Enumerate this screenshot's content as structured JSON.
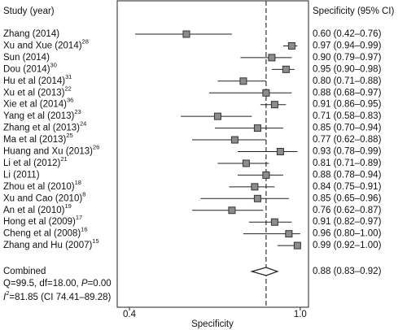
{
  "chart_data": {
    "type": "forest",
    "header_left": "Study (year)",
    "header_right": "Specificity (95% CI)",
    "xlabel": "Specificity",
    "categories": [
      "Zhang (2014)",
      "Xu and Xue (2014)",
      "Sun (2014)",
      "Dou (2014)",
      "Hu et al (2014)",
      "Xu et al (2013)",
      "Xie et al (2014)",
      "Yang et al (2013)",
      "Zhang et al (2013)",
      "Ma et al (2013)",
      "Huang and Xu (2013)",
      "Li et al (2012)",
      "Li (2011)",
      "Zhou et al (2010)",
      "Xu and Cao (2010)",
      "An et al (2010)",
      "Hong et al (2009)",
      "Cheng et al (2008)",
      "Zhang and Hu (2007)"
    ],
    "refs": [
      null,
      "28",
      null,
      "30",
      "31",
      "22",
      "36",
      "23",
      "24",
      "25",
      "26",
      "21",
      null,
      "18",
      "8",
      "19",
      "17",
      "16",
      "15"
    ],
    "values": [
      0.6,
      0.97,
      0.9,
      0.95,
      0.8,
      0.88,
      0.91,
      0.71,
      0.85,
      0.77,
      0.93,
      0.81,
      0.88,
      0.84,
      0.85,
      0.76,
      0.91,
      0.96,
      0.99
    ],
    "lower": [
      0.42,
      0.94,
      0.79,
      0.9,
      0.71,
      0.68,
      0.86,
      0.58,
      0.7,
      0.62,
      0.78,
      0.71,
      0.78,
      0.75,
      0.65,
      0.62,
      0.82,
      0.8,
      0.92
    ],
    "upper": [
      0.76,
      0.99,
      0.97,
      0.98,
      0.88,
      0.97,
      0.95,
      0.83,
      0.94,
      0.88,
      0.99,
      0.89,
      0.94,
      0.91,
      0.96,
      0.87,
      0.97,
      1.0,
      1.0
    ],
    "value_labels": [
      "0.60 (0.42–0.76)",
      "0.97 (0.94–0.99)",
      "0.90 (0.79–0.97)",
      "0.95 (0.90–0.98)",
      "0.80 (0.71–0.88)",
      "0.88 (0.68–0.97)",
      "0.91 (0.86–0.95)",
      "0.71 (0.58–0.83)",
      "0.85 (0.70–0.94)",
      "0.77 (0.62–0.88)",
      "0.93 (0.78–0.99)",
      "0.81 (0.71–0.89)",
      "0.88 (0.78–0.94)",
      "0.84 (0.75–0.91)",
      "0.85 (0.65–0.96)",
      "0.76 (0.62–0.87)",
      "0.91 (0.82–0.97)",
      "0.96 (0.80–1.00)",
      "0.99 (0.92–1.00)"
    ],
    "combined": {
      "label": "Combined",
      "value": 0.88,
      "lower": 0.83,
      "upper": 0.92,
      "value_label": "0.88 (0.83–0.92)"
    },
    "heterogeneity": {
      "q_text": "Q=99.5, df=18.00, ",
      "p_symbol": "P",
      "p_text": "=0.00",
      "i_symbol": "I",
      "i_sup": "2",
      "i_text": "=81.85 (CI 74.41–89.28)"
    },
    "xlim": [
      0.357,
      1.029
    ],
    "xticks": [
      0.4,
      {
        "value": 1,
        "label": "1.0"
      }
    ],
    "square_color": "#8c8c8c"
  }
}
